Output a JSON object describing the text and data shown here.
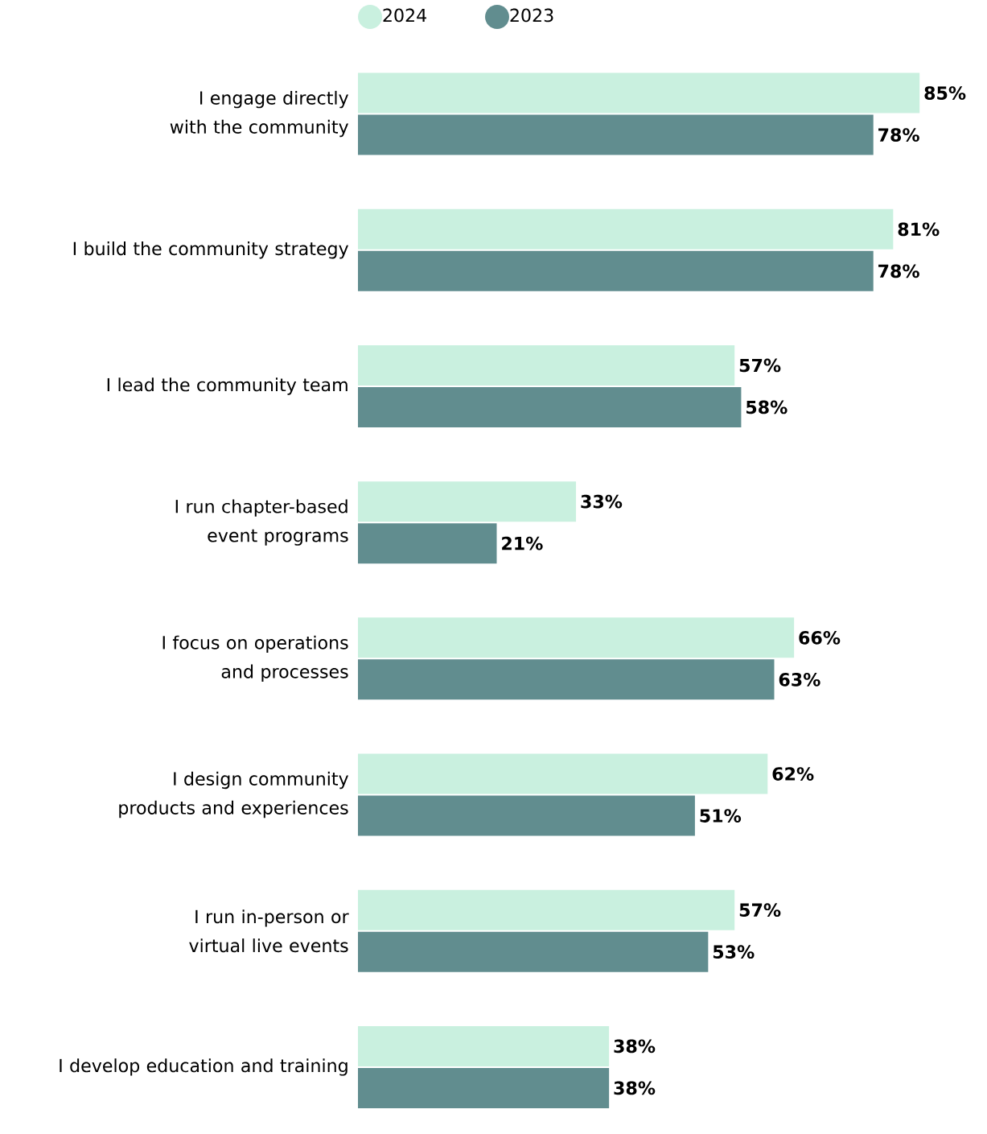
{
  "chart_data": {
    "type": "bar",
    "orientation": "horizontal",
    "categories": [
      "I engage directly with the community",
      "I build the community strategy",
      "I lead the community team",
      "I run chapter-based event programs",
      "I focus on operations and processes",
      "I design community products and experiences",
      "I run in-person or virtual live events",
      "I develop education and training"
    ],
    "series": [
      {
        "name": "2024",
        "color": "#c9f0df",
        "values": [
          85,
          81,
          57,
          33,
          66,
          62,
          57,
          38
        ],
        "value_labels": [
          "85%",
          "81%",
          "57%",
          "33%",
          "66%",
          "62%",
          "57%",
          "38%"
        ]
      },
      {
        "name": "2023",
        "color": "#618d8f",
        "values": [
          78,
          78,
          58,
          21,
          63,
          51,
          53,
          38
        ],
        "value_labels": [
          "78%",
          "78%",
          "58%",
          "21%",
          "63%",
          "51%",
          "53%",
          "38%"
        ]
      }
    ],
    "legend": "top left",
    "tick_labels": "y"
  }
}
